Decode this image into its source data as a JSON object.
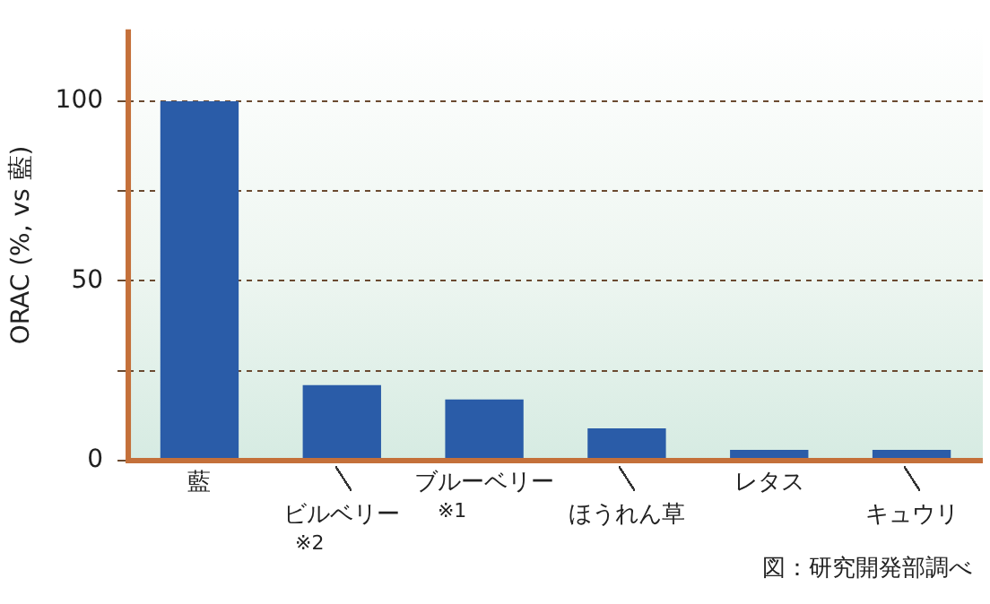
{
  "chart_data": {
    "type": "bar",
    "categories": [
      "藍",
      "ビルベリー\n※2",
      "ブルーベリー\n※1",
      "ほうれん草",
      "レタス",
      "キュウリ"
    ],
    "values": [
      100,
      21,
      17,
      9,
      3,
      3
    ],
    "color": "#2a5ca8",
    "ylabel": "ORAC (%, vs 藍)",
    "ylim": [
      0,
      120
    ],
    "yticks": [
      0,
      {
        "value": 25,
        "label": null
      },
      50,
      {
        "value": 75,
        "label": null
      },
      100
    ],
    "grid": "y",
    "legend": false,
    "annotations": [
      "図：研究開発部調べ"
    ]
  }
}
